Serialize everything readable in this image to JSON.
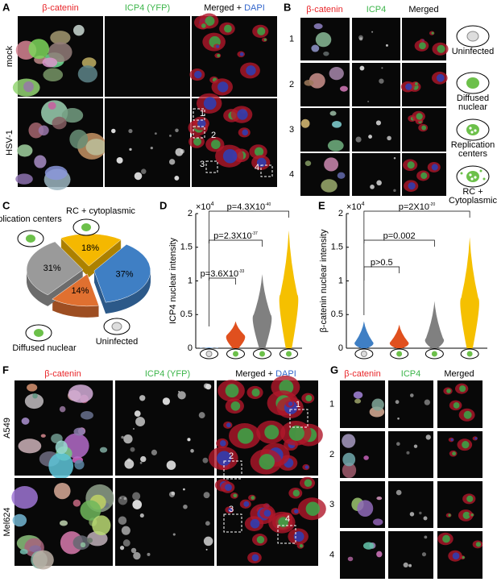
{
  "panel_labels": [
    "A",
    "B",
    "C",
    "D",
    "E",
    "F",
    "G"
  ],
  "panel_a": {
    "col_titles": [
      "β-catenin",
      "ICP4 (YFP)",
      "Merged + ",
      "DAPI"
    ],
    "rows": [
      "mock",
      "HSV-1"
    ],
    "boxes": [
      "1",
      "2",
      "3",
      "4"
    ]
  },
  "panel_b": {
    "col_titles": [
      "β-catenin",
      "ICP4",
      "Merged"
    ],
    "rows": [
      "1",
      "2",
      "3",
      "4"
    ],
    "legend": [
      [
        "Uninfected"
      ],
      [
        "Diffused",
        "nuclear"
      ],
      [
        "Replication",
        "centers"
      ],
      [
        "RC +",
        "Cytoplasmic"
      ]
    ]
  },
  "panel_f": {
    "col_titles": [
      "β-catenin",
      "ICP4 (YFP)",
      "Merged + ",
      "DAPI"
    ],
    "rows": [
      "A549",
      "Mel624"
    ],
    "boxes": [
      "1",
      "2",
      "3",
      "4"
    ]
  },
  "panel_g": {
    "col_titles": [
      "β-catenin",
      "ICP4",
      "Merged"
    ],
    "rows": [
      "1",
      "2",
      "3",
      "4"
    ]
  },
  "chart_data": [
    {
      "type": "pie",
      "categories": [
        "Uninfected",
        "Diffused nuclear",
        "Replication centers",
        "RC + cytoplasmic"
      ],
      "values": [
        37,
        14,
        31,
        18
      ],
      "value_labels": [
        "37%",
        "14%",
        "31%",
        "18%"
      ],
      "colors": [
        "#3f7fc4",
        "#e07030",
        "#9a9a9a",
        "#f5b800"
      ]
    },
    {
      "type": "violin",
      "ylabel": "ICP4 nuclear intensity",
      "axis_multiplier": {
        "base": "×10",
        "exp": "4"
      },
      "ylim": [
        0,
        20000
      ],
      "yticks": [
        0,
        {
          "value": 5000,
          "label": "0.5"
        },
        {
          "value": 10000,
          "label": "1"
        },
        {
          "value": 15000,
          "label": "1.5"
        },
        {
          "value": 20000,
          "label": "2"
        }
      ],
      "categories": [
        null,
        null,
        null,
        null
      ],
      "values": [
        0,
        2000,
        5000,
        8000
      ],
      "max": [
        100,
        4000,
        11000,
        17500
      ],
      "colors": [
        "#3f7fc4",
        "#e0501e",
        "#808080",
        "#f5c000"
      ],
      "annotations": [
        {
          "text": "p=3.6X10",
          "exp": "-33"
        },
        {
          "text": "p=2.3X10",
          "exp": "-37"
        },
        {
          "text": "p=4.3X10",
          "exp": "-40"
        }
      ]
    },
    {
      "type": "violin",
      "ylabel": "β-catenin nuclear intensity",
      "axis_multiplier": {
        "base": "×10",
        "exp": "4"
      },
      "ylim": [
        0,
        20000
      ],
      "yticks": [
        0,
        {
          "value": 5000,
          "label": "0.5"
        },
        {
          "value": 10000,
          "label": "1"
        },
        {
          "value": 15000,
          "label": "1.5"
        },
        {
          "value": 20000,
          "label": "2"
        }
      ],
      "categories": [
        null,
        null,
        null,
        null
      ],
      "values": [
        1000,
        1000,
        1500,
        7500
      ],
      "max": [
        4000,
        3500,
        7000,
        16500
      ],
      "colors": [
        "#3f7fc4",
        "#e0501e",
        "#808080",
        "#f5c000"
      ],
      "annotations": [
        {
          "text": "p>0.5"
        },
        {
          "text": "p=0.002"
        },
        {
          "text": "p=2X10",
          "exp": "-20"
        }
      ]
    }
  ]
}
